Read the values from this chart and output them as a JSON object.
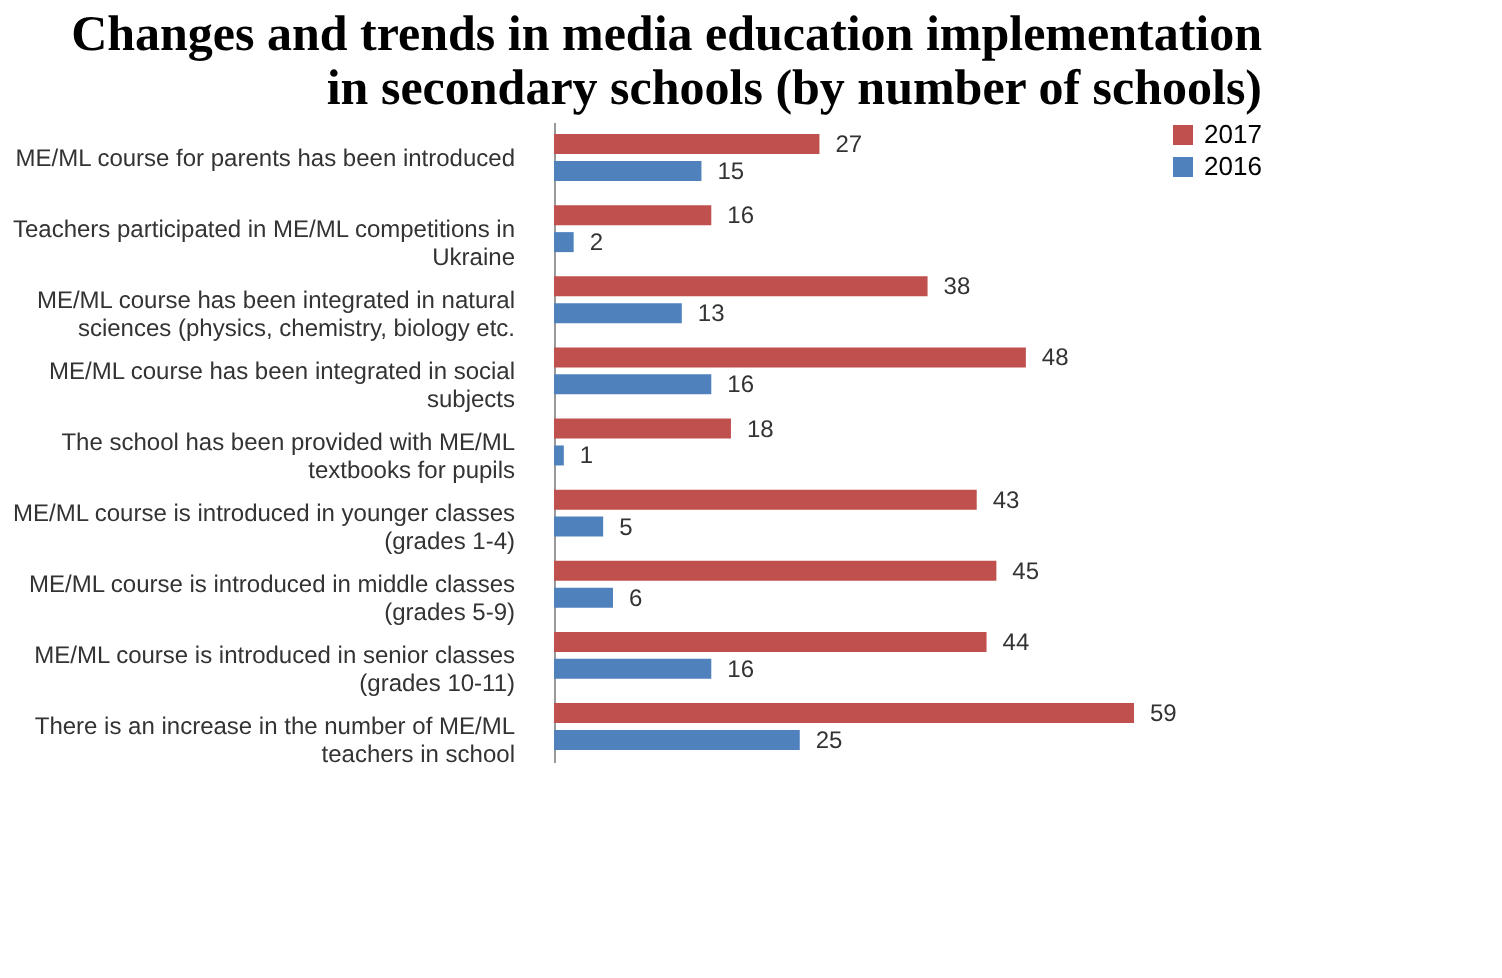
{
  "chart_data": {
    "type": "bar",
    "orientation": "horizontal",
    "title": "Changes and trends in media education implementation in secondary schools (by number of schools)",
    "categories": [
      "ME/ML course for parents has been introduced",
      "Teachers participated in ME/ML competitions in Ukraine",
      "ME/ML course has been integrated in natural sciences (physics, chemistry, biology etc.",
      "ME/ML course has been integrated in social subjects",
      "The school has been provided with ME/ML textbooks for pupils",
      "ME/ML course is introduced in younger classes (grades 1-4)",
      "ME/ML course is introduced in middle classes (grades 5-9)",
      "ME/ML course is introduced in senior classes (grades 10-11)",
      "There is an increase in the number of ME/ML teachers in school"
    ],
    "series": [
      {
        "name": "2017",
        "color": "#c0504d",
        "values": [
          27,
          16,
          38,
          48,
          18,
          43,
          45,
          44,
          59
        ]
      },
      {
        "name": "2016",
        "color": "#4f81bd",
        "values": [
          15,
          2,
          13,
          16,
          1,
          5,
          6,
          16,
          25
        ]
      }
    ],
    "data_labels": true,
    "legend": "right",
    "grid": false
  }
}
